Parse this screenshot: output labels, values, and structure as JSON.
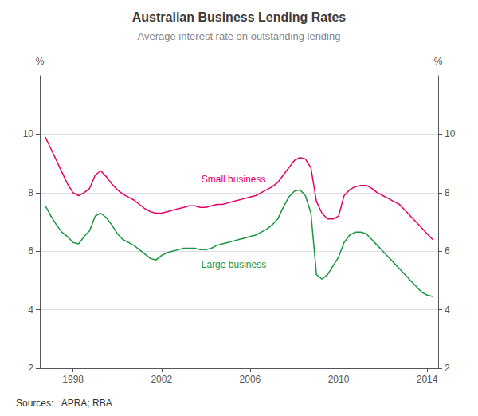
{
  "chart_data": {
    "type": "line",
    "title": "Australian Business Lending Rates",
    "subtitle": "Average interest rate on outstanding lending",
    "source": "Sources:   APRA; RBA",
    "ylabel": "%",
    "y2label": "%",
    "xlim": [
      1996.5,
      2014.5
    ],
    "xticks": [
      1998,
      2002,
      2006,
      2010,
      2014
    ],
    "ylim": [
      2,
      12
    ],
    "yticks": [
      2,
      4,
      6,
      8,
      10
    ],
    "y2lim": [
      2,
      12
    ],
    "y2ticks": [
      2,
      4,
      6,
      8,
      10
    ],
    "grid": true,
    "x": [
      1996.75,
      1997.0,
      1997.25,
      1997.5,
      1997.75,
      1998.0,
      1998.25,
      1998.5,
      1998.75,
      1999.0,
      1999.25,
      1999.5,
      1999.75,
      2000.0,
      2000.25,
      2000.5,
      2000.75,
      2001.0,
      2001.25,
      2001.5,
      2001.75,
      2002.0,
      2002.25,
      2002.5,
      2002.75,
      2003.0,
      2003.25,
      2003.5,
      2003.75,
      2004.0,
      2004.25,
      2004.5,
      2004.75,
      2005.0,
      2005.25,
      2005.5,
      2005.75,
      2006.0,
      2006.25,
      2006.5,
      2006.75,
      2007.0,
      2007.25,
      2007.5,
      2007.75,
      2008.0,
      2008.25,
      2008.5,
      2008.75,
      2009.0,
      2009.25,
      2009.5,
      2009.75,
      2010.0,
      2010.25,
      2010.5,
      2010.75,
      2011.0,
      2011.25,
      2011.5,
      2011.75,
      2012.0,
      2012.25,
      2012.5,
      2012.75,
      2013.0,
      2013.25,
      2013.5,
      2013.75,
      2014.0,
      2014.25
    ],
    "series": [
      {
        "name": "Small business",
        "color": "#E8006A",
        "values": [
          9.9,
          9.5,
          9.1,
          8.7,
          8.3,
          8.0,
          7.9,
          8.0,
          8.15,
          8.6,
          8.75,
          8.55,
          8.3,
          8.1,
          7.95,
          7.85,
          7.75,
          7.6,
          7.45,
          7.35,
          7.3,
          7.3,
          7.35,
          7.4,
          7.45,
          7.5,
          7.55,
          7.55,
          7.5,
          7.5,
          7.55,
          7.6,
          7.6,
          7.65,
          7.7,
          7.75,
          7.8,
          7.85,
          7.9,
          8.0,
          8.1,
          8.2,
          8.35,
          8.6,
          8.85,
          9.1,
          9.2,
          9.15,
          8.85,
          7.7,
          7.3,
          7.1,
          7.1,
          7.2,
          7.9,
          8.1,
          8.2,
          8.25,
          8.25,
          8.15,
          8.0,
          7.9,
          7.8,
          7.7,
          7.6,
          7.4,
          7.2,
          7.0,
          6.8,
          6.6,
          6.4
        ]
      },
      {
        "name": "Large business",
        "color": "#1A9641",
        "values": [
          7.55,
          7.2,
          6.9,
          6.65,
          6.5,
          6.3,
          6.25,
          6.5,
          6.7,
          7.2,
          7.3,
          7.15,
          6.9,
          6.6,
          6.4,
          6.3,
          6.2,
          6.05,
          5.9,
          5.75,
          5.7,
          5.85,
          5.95,
          6.0,
          6.05,
          6.1,
          6.1,
          6.1,
          6.05,
          6.05,
          6.1,
          6.2,
          6.25,
          6.3,
          6.35,
          6.4,
          6.45,
          6.5,
          6.55,
          6.65,
          6.75,
          6.9,
          7.1,
          7.5,
          7.85,
          8.05,
          8.1,
          7.9,
          7.3,
          5.2,
          5.05,
          5.2,
          5.5,
          5.8,
          6.3,
          6.55,
          6.65,
          6.65,
          6.6,
          6.4,
          6.2,
          6.0,
          5.8,
          5.6,
          5.4,
          5.2,
          5.0,
          4.8,
          4.6,
          4.5,
          4.45
        ]
      }
    ],
    "annotations": [
      {
        "text": "Small business",
        "x": 2003.8,
        "y": 8.45,
        "color": "#E8006A"
      },
      {
        "text": "Large business",
        "x": 2003.8,
        "y": 5.55,
        "color": "#1A9641"
      }
    ]
  }
}
